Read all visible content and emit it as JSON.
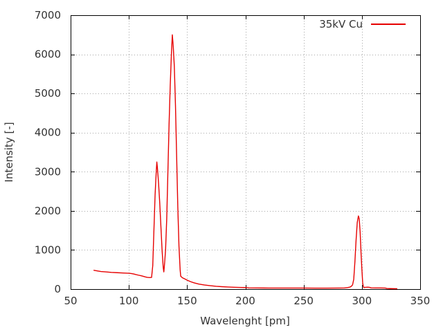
{
  "chart_data": {
    "type": "line",
    "title": "",
    "xlabel": "Wavelenght [pm]",
    "ylabel": "Intensity [-]",
    "xlim": [
      50,
      350
    ],
    "ylim": [
      0,
      7000
    ],
    "xticks": [
      50,
      100,
      150,
      200,
      250,
      300,
      350
    ],
    "yticks": [
      0,
      1000,
      2000,
      3000,
      4000,
      5000,
      6000,
      7000
    ],
    "grid": "dotted",
    "legend_position": "top-right",
    "series": [
      {
        "name": "35kV Cu",
        "color": "#e60000",
        "x": [
          70,
          73,
          76,
          80,
          85,
          90,
          95,
          100,
          102,
          104,
          106,
          108,
          110,
          112,
          114,
          116,
          118,
          119.5,
          120.5,
          121.5,
          122.5,
          123.5,
          124,
          124.5,
          125.5,
          126.5,
          127.5,
          128.5,
          129.5,
          130,
          130.5,
          131.5,
          132.5,
          133.5,
          134.5,
          135.5,
          136.5,
          137.3,
          138,
          139,
          140,
          141,
          142,
          143,
          144,
          144.5,
          146,
          148,
          150,
          153,
          156,
          160,
          165,
          170,
          175,
          180,
          185,
          190,
          195,
          200,
          203,
          210,
          220,
          230,
          240,
          250,
          260,
          270,
          280,
          285,
          288,
          290,
          291,
          292,
          293,
          294,
          295,
          296,
          297,
          297.7,
          298.5,
          299.3,
          300,
          300.7,
          301.5,
          303,
          305,
          306.5,
          308,
          312,
          316,
          320,
          321.5,
          324,
          327,
          330
        ],
        "y": [
          480,
          465,
          450,
          440,
          428,
          420,
          412,
          405,
          398,
          388,
          372,
          358,
          345,
          330,
          312,
          300,
          295,
          300,
          600,
          1500,
          2400,
          3000,
          3250,
          3100,
          2700,
          2200,
          1600,
          1000,
          550,
          440,
          600,
          1000,
          1800,
          3000,
          4200,
          5200,
          6000,
          6500,
          6250,
          5700,
          4700,
          3400,
          2100,
          1100,
          500,
          330,
          290,
          260,
          230,
          190,
          160,
          130,
          105,
          88,
          72,
          62,
          55,
          48,
          43,
          40,
          32,
          30,
          28,
          28,
          27,
          27,
          26,
          26,
          27,
          30,
          40,
          55,
          75,
          110,
          250,
          700,
          1250,
          1700,
          1870,
          1800,
          1450,
          900,
          500,
          150,
          40,
          45,
          50,
          45,
          32,
          30,
          29,
          28,
          16,
          13,
          11,
          10
        ]
      }
    ]
  },
  "colors": {
    "line": "#e60000",
    "grid": "#a6a6a6",
    "border": "#000000",
    "text": "#333333",
    "background": "#ffffff"
  }
}
